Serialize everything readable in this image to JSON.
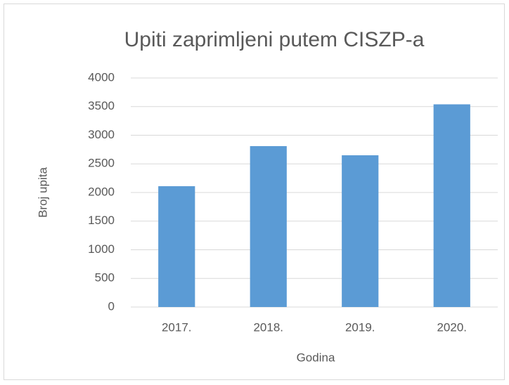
{
  "chart_data": {
    "type": "bar",
    "title": "Upiti zaprimljeni putem CISZP-a",
    "x_label": "Godina",
    "y_label": "Broj upita",
    "categories": [
      "2017.",
      "2018.",
      "2019.",
      "2020."
    ],
    "values": [
      2110,
      2810,
      2650,
      3540
    ],
    "color": "#5b9bd5",
    "ylim": [
      0,
      4000
    ],
    "yticks": [
      0,
      500,
      1000,
      1500,
      2000,
      2500,
      3000,
      3500,
      4000
    ],
    "grid": true
  }
}
